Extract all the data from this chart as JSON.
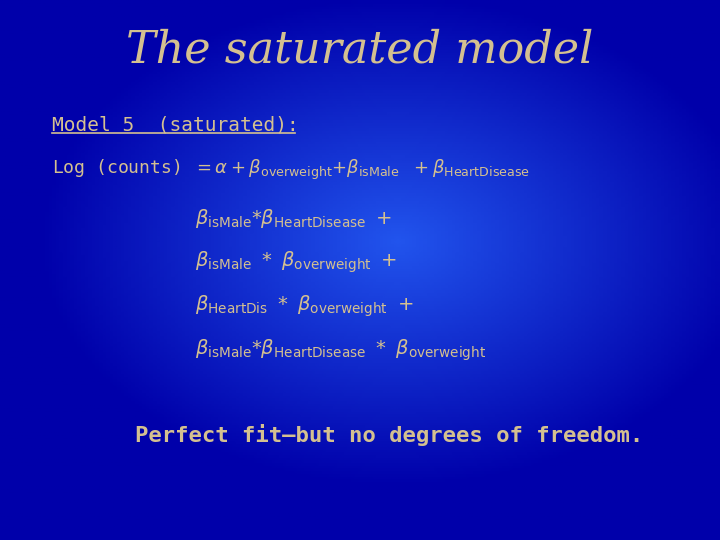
{
  "title": "The saturated model",
  "text_color": "#D4C090",
  "underline_text": "Model 5  (saturated):",
  "footer_text": "Perfect fit—but no degrees of freedom."
}
